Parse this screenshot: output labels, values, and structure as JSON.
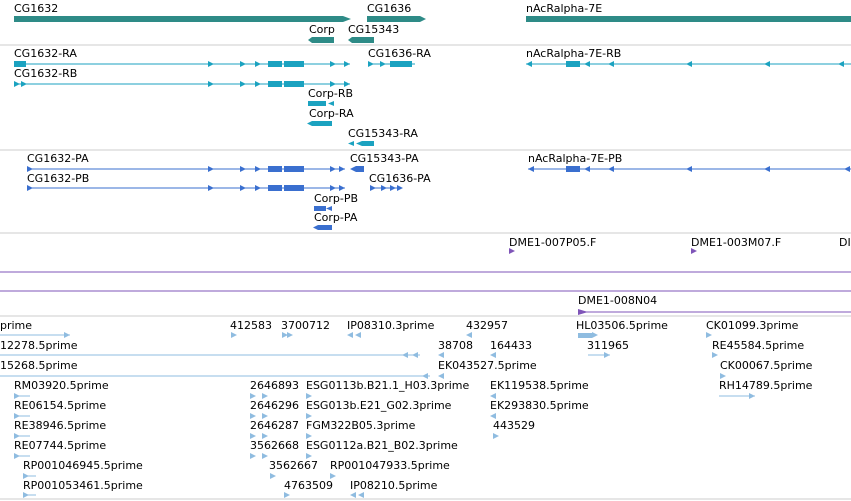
{
  "colors": {
    "gene": "#2e8b87",
    "transcript": "#1ba2c0",
    "protein": "#3a6fcf",
    "clone": "#7f55b8",
    "est": "#8fbce0",
    "divider": "#cccccc",
    "track_line": "#7f55b8"
  },
  "genes": [
    {
      "label": "CG1632"
    },
    {
      "label": "CG1636"
    },
    {
      "label": "nAcRalpha-7E"
    },
    {
      "label": "Corp"
    },
    {
      "label": "CG15343"
    }
  ],
  "transcripts": [
    {
      "label": "CG1632-RA"
    },
    {
      "label": "CG1632-RB"
    },
    {
      "label": "CG1636-RA"
    },
    {
      "label": "nAcRalpha-7E-RB"
    },
    {
      "label": "Corp-RB"
    },
    {
      "label": "Corp-RA"
    },
    {
      "label": "CG15343-RA"
    }
  ],
  "proteins": [
    {
      "label": "CG1632-PA"
    },
    {
      "label": "CG1632-PB"
    },
    {
      "label": "CG15343-PA"
    },
    {
      "label": "CG1636-PA"
    },
    {
      "label": "nAcRalpha-7E-PB"
    },
    {
      "label": "Corp-PB"
    },
    {
      "label": "Corp-PA"
    }
  ],
  "clones": [
    {
      "label": "DME1-007P05.F"
    },
    {
      "label": "DME1-003M07.F"
    },
    {
      "label": "DI"
    },
    {
      "label": "DME1-008N04"
    }
  ],
  "ests": [
    {
      "label": "prime"
    },
    {
      "label": "12278.5prime"
    },
    {
      "label": "15268.5prime"
    },
    {
      "label": "RM03920.5prime"
    },
    {
      "label": "RE06154.5prime"
    },
    {
      "label": "RE38946.5prime"
    },
    {
      "label": "RE07744.5prime"
    },
    {
      "label": "RP001046945.5prime"
    },
    {
      "label": "RP001053461.5prime"
    },
    {
      "label": "412583"
    },
    {
      "label": "3700712"
    },
    {
      "label": "IP08310.3prime"
    },
    {
      "label": "432957"
    },
    {
      "label": "38708"
    },
    {
      "label": "164433"
    },
    {
      "label": "EK043527.5prime"
    },
    {
      "label": "2646893"
    },
    {
      "label": "ESG0113b.B21.1_H03.3prime"
    },
    {
      "label": "EK119538.5prime"
    },
    {
      "label": "2646296"
    },
    {
      "label": "ESG013b.E21_G02.3prime"
    },
    {
      "label": "EK293830.5prime"
    },
    {
      "label": "2646287"
    },
    {
      "label": "FGM322B05.3prime"
    },
    {
      "label": "443529"
    },
    {
      "label": "3562668"
    },
    {
      "label": "ESG0112a.B21_B02.3prime"
    },
    {
      "label": "3562667"
    },
    {
      "label": "RP001047933.5prime"
    },
    {
      "label": "4763509"
    },
    {
      "label": "IP08210.5prime"
    },
    {
      "label": "HL03506.5prime"
    },
    {
      "label": "311965"
    },
    {
      "label": "CK01099.3prime"
    },
    {
      "label": "RE45584.5prime"
    },
    {
      "label": "CK00067.5prime"
    },
    {
      "label": "RH14789.5prime"
    }
  ]
}
